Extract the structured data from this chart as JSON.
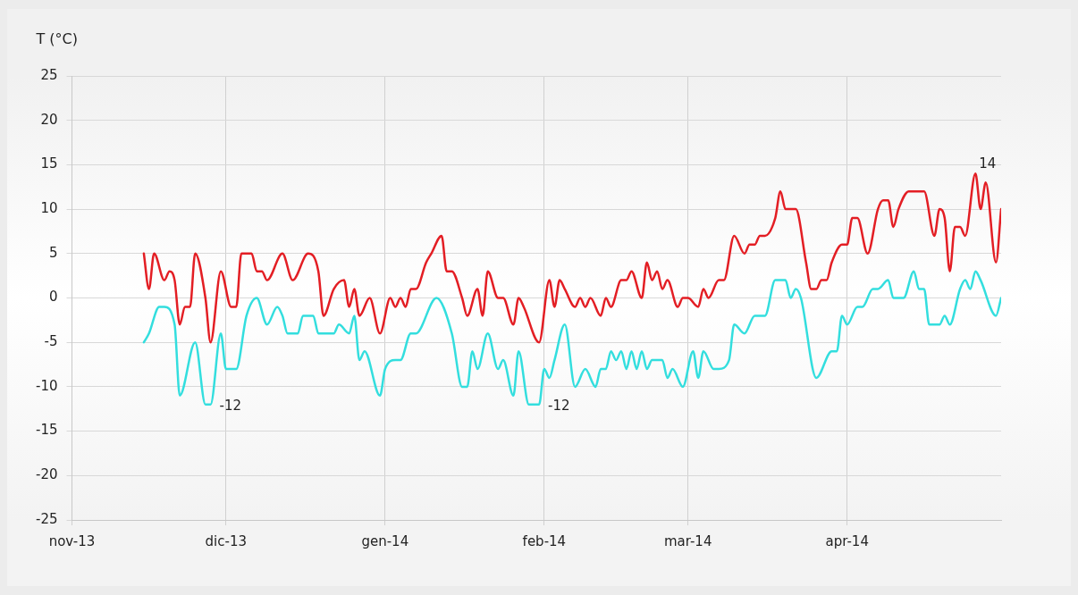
{
  "chart_data": {
    "type": "line",
    "ylabel": "T (°C)",
    "xlim": [
      "2013-11-01",
      "2014-05-01"
    ],
    "xticks": [
      {
        "value": "2013-11-01",
        "label": "nov-13"
      },
      {
        "value": "2013-12-01",
        "label": "dic-13"
      },
      {
        "value": "2014-01-01",
        "label": "gen-14"
      },
      {
        "value": "2014-02-01",
        "label": "feb-14"
      },
      {
        "value": "2014-03-01",
        "label": "mar-14"
      },
      {
        "value": "2014-04-01",
        "label": "apr-14"
      }
    ],
    "ylim": [
      -25,
      25
    ],
    "yticks": [
      -25,
      -20,
      -15,
      -10,
      -5,
      0,
      5,
      10,
      15,
      20,
      25
    ],
    "grid": true,
    "legend": false,
    "marker": "none",
    "line_style": "solid",
    "series": [
      {
        "color": "#e31e24",
        "x": [
          "2013-11-15",
          "2013-11-16",
          "2013-11-17",
          "2013-11-19",
          "2013-11-20",
          "2013-11-21",
          "2013-11-22",
          "2013-11-23",
          "2013-11-24",
          "2013-11-25",
          "2013-11-27",
          "2013-11-28",
          "2013-11-30",
          "2013-12-02",
          "2013-12-03",
          "2013-12-04",
          "2013-12-06",
          "2013-12-07",
          "2013-12-08",
          "2013-12-09",
          "2013-12-12",
          "2013-12-14",
          "2013-12-17",
          "2013-12-19",
          "2013-12-20",
          "2013-12-22",
          "2013-12-24",
          "2013-12-25",
          "2013-12-26",
          "2013-12-27",
          "2013-12-29",
          "2013-12-31",
          "2014-01-02",
          "2014-01-03",
          "2014-01-04",
          "2014-01-05",
          "2014-01-06",
          "2014-01-07",
          "2014-01-09",
          "2014-01-10",
          "2014-01-12",
          "2014-01-13",
          "2014-01-14",
          "2014-01-16",
          "2014-01-17",
          "2014-01-19",
          "2014-01-20",
          "2014-01-21",
          "2014-01-23",
          "2014-01-24",
          "2014-01-26",
          "2014-01-27",
          "2014-01-28",
          "2014-01-31",
          "2014-02-02",
          "2014-02-03",
          "2014-02-04",
          "2014-02-05",
          "2014-02-07",
          "2014-02-08",
          "2014-02-09",
          "2014-02-10",
          "2014-02-12",
          "2014-02-13",
          "2014-02-14",
          "2014-02-16",
          "2014-02-17",
          "2014-02-18",
          "2014-02-20",
          "2014-02-21",
          "2014-02-22",
          "2014-02-23",
          "2014-02-24",
          "2014-02-25",
          "2014-02-27",
          "2014-02-28",
          "2014-03-01",
          "2014-03-03",
          "2014-03-04",
          "2014-03-05",
          "2014-03-07",
          "2014-03-08",
          "2014-03-10",
          "2014-03-12",
          "2014-03-13",
          "2014-03-14",
          "2014-03-15",
          "2014-03-16",
          "2014-03-18",
          "2014-03-19",
          "2014-03-20",
          "2014-03-22",
          "2014-03-24",
          "2014-03-25",
          "2014-03-26",
          "2014-03-27",
          "2014-03-28",
          "2014-03-29",
          "2014-03-31",
          "2014-04-01",
          "2014-04-02",
          "2014-04-03",
          "2014-04-05",
          "2014-04-07",
          "2014-04-08",
          "2014-04-09",
          "2014-04-10",
          "2014-04-11",
          "2014-04-13",
          "2014-04-16",
          "2014-04-18",
          "2014-04-19",
          "2014-04-20",
          "2014-04-21",
          "2014-04-22",
          "2014-04-23",
          "2014-04-24",
          "2014-04-26",
          "2014-04-27",
          "2014-04-28",
          "2014-04-30",
          "2014-05-01"
        ],
        "values": [
          5,
          1,
          5,
          2,
          3,
          2,
          -3,
          -1,
          -1,
          5,
          0,
          -5,
          3,
          -1,
          -1,
          5,
          5,
          3,
          3,
          2,
          5,
          2,
          5,
          3,
          -2,
          1,
          2,
          -1,
          1,
          -2,
          0,
          -4,
          0,
          -1,
          0,
          -1,
          1,
          1,
          4,
          5,
          7,
          3,
          3,
          0,
          -2,
          1,
          -2,
          3,
          0,
          0,
          -3,
          0,
          -1,
          -5,
          2,
          -1,
          2,
          1,
          -1,
          0,
          -1,
          0,
          -2,
          0,
          -1,
          2,
          2,
          3,
          0,
          4,
          2,
          3,
          1,
          2,
          -1,
          0,
          0,
          -1,
          1,
          0,
          2,
          2,
          7,
          5,
          6,
          6,
          7,
          7,
          9,
          12,
          10,
          10,
          4,
          1,
          1,
          2,
          2,
          4,
          6,
          6,
          9,
          9,
          5,
          10,
          11,
          11,
          8,
          10,
          12,
          12,
          7,
          10,
          9,
          3,
          8,
          8,
          7,
          14,
          10,
          13,
          4,
          10
        ]
      },
      {
        "color": "#33dede",
        "x": [
          "2013-11-15",
          "2013-11-16",
          "2013-11-18",
          "2013-11-19",
          "2013-11-21",
          "2013-11-22",
          "2013-11-25",
          "2013-11-27",
          "2013-11-28",
          "2013-11-30",
          "2013-12-01",
          "2013-12-03",
          "2013-12-05",
          "2013-12-07",
          "2013-12-09",
          "2013-12-11",
          "2013-12-12",
          "2013-12-13",
          "2013-12-15",
          "2013-12-16",
          "2013-12-18",
          "2013-12-19",
          "2013-12-22",
          "2013-12-23",
          "2013-12-25",
          "2013-12-26",
          "2013-12-27",
          "2013-12-28",
          "2013-12-31",
          "2014-01-01",
          "2014-01-03",
          "2014-01-04",
          "2014-01-06",
          "2014-01-07",
          "2014-01-11",
          "2014-01-14",
          "2014-01-16",
          "2014-01-17",
          "2014-01-18",
          "2014-01-19",
          "2014-01-21",
          "2014-01-23",
          "2014-01-24",
          "2014-01-26",
          "2014-01-27",
          "2014-01-29",
          "2014-01-31",
          "2014-02-01",
          "2014-02-02",
          "2014-02-03",
          "2014-02-05",
          "2014-02-07",
          "2014-02-09",
          "2014-02-11",
          "2014-02-12",
          "2014-02-13",
          "2014-02-14",
          "2014-02-15",
          "2014-02-16",
          "2014-02-17",
          "2014-02-18",
          "2014-02-19",
          "2014-02-20",
          "2014-02-21",
          "2014-02-22",
          "2014-02-24",
          "2014-02-25",
          "2014-02-26",
          "2014-02-28",
          "2014-03-02",
          "2014-03-03",
          "2014-03-04",
          "2014-03-06",
          "2014-03-07",
          "2014-03-09",
          "2014-03-10",
          "2014-03-12",
          "2014-03-14",
          "2014-03-16",
          "2014-03-18",
          "2014-03-20",
          "2014-03-21",
          "2014-03-22",
          "2014-03-23",
          "2014-03-26",
          "2014-03-29",
          "2014-03-30",
          "2014-03-31",
          "2014-04-01",
          "2014-04-03",
          "2014-04-04",
          "2014-04-06",
          "2014-04-07",
          "2014-04-09",
          "2014-04-10",
          "2014-04-12",
          "2014-04-14",
          "2014-04-15",
          "2014-04-16",
          "2014-04-17",
          "2014-04-19",
          "2014-04-20",
          "2014-04-21",
          "2014-04-23",
          "2014-04-24",
          "2014-04-25",
          "2014-04-26",
          "2014-04-27",
          "2014-04-30",
          "2014-05-01"
        ],
        "values": [
          -5,
          -4,
          -1,
          -1,
          -3,
          -11,
          -5,
          -12,
          -12,
          -4,
          -8,
          -8,
          -2,
          0,
          -3,
          -1,
          -2,
          -4,
          -4,
          -2,
          -2,
          -4,
          -4,
          -3,
          -4,
          -2,
          -7,
          -6,
          -11,
          -8,
          -7,
          -7,
          -4,
          -4,
          0,
          -4,
          -10,
          -10,
          -6,
          -8,
          -4,
          -8,
          -7,
          -11,
          -6,
          -12,
          -12,
          -8,
          -9,
          -7,
          -3,
          -10,
          -8,
          -10,
          -8,
          -8,
          -6,
          -7,
          -6,
          -8,
          -6,
          -8,
          -6,
          -8,
          -7,
          -7,
          -9,
          -8,
          -10,
          -6,
          -9,
          -6,
          -8,
          -8,
          -7,
          -3,
          -4,
          -2,
          -2,
          2,
          2,
          0,
          1,
          0,
          -9,
          -6,
          -6,
          -2,
          -3,
          -1,
          -1,
          1,
          1,
          2,
          0,
          0,
          3,
          1,
          1,
          -3,
          -3,
          -2,
          -3,
          1,
          2,
          1,
          3,
          2,
          -2,
          0
        ]
      }
    ],
    "annotations": [
      {
        "text": "-12",
        "x": "2013-11-28",
        "y": -12
      },
      {
        "text": "-12",
        "x": "2014-01-31",
        "y": -12
      },
      {
        "text": "14",
        "x": "2014-04-26",
        "y": 14
      }
    ]
  }
}
